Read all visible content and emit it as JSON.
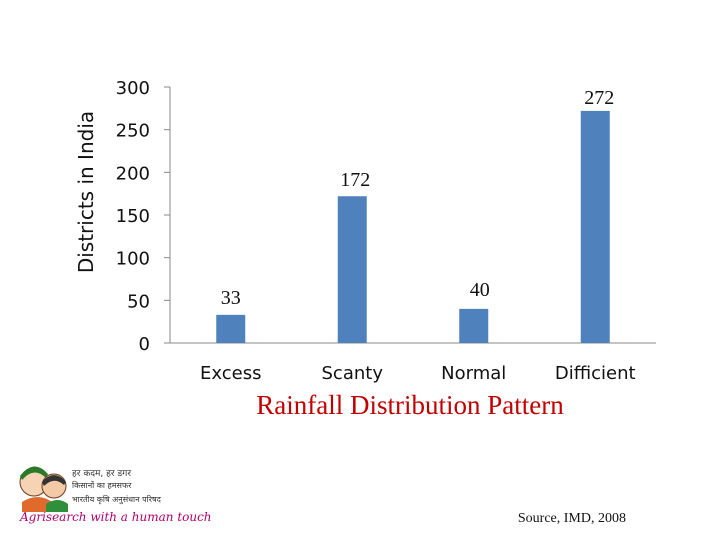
{
  "chart_data": {
    "type": "bar",
    "categories": [
      "Excess",
      "Scanty",
      "Normal",
      "Difficient"
    ],
    "values": [
      33,
      172,
      40,
      272
    ],
    "ylabel": "Districts in India",
    "title": "Rainfall Distribution Pattern",
    "ylim": [
      0,
      300
    ],
    "yticks": [
      0,
      50,
      100,
      150,
      200,
      250,
      300
    ],
    "grid": false,
    "bar_color": "#4f81bd"
  },
  "source": "Source, IMD, 2008",
  "logo": {
    "line1": "हर कदम, हर डगर",
    "line2": "किसानों का हमसफर",
    "line3": "भारतीय कृषि अनुसंधान परिषद",
    "tagline": "Agrisearch with a human touch"
  }
}
